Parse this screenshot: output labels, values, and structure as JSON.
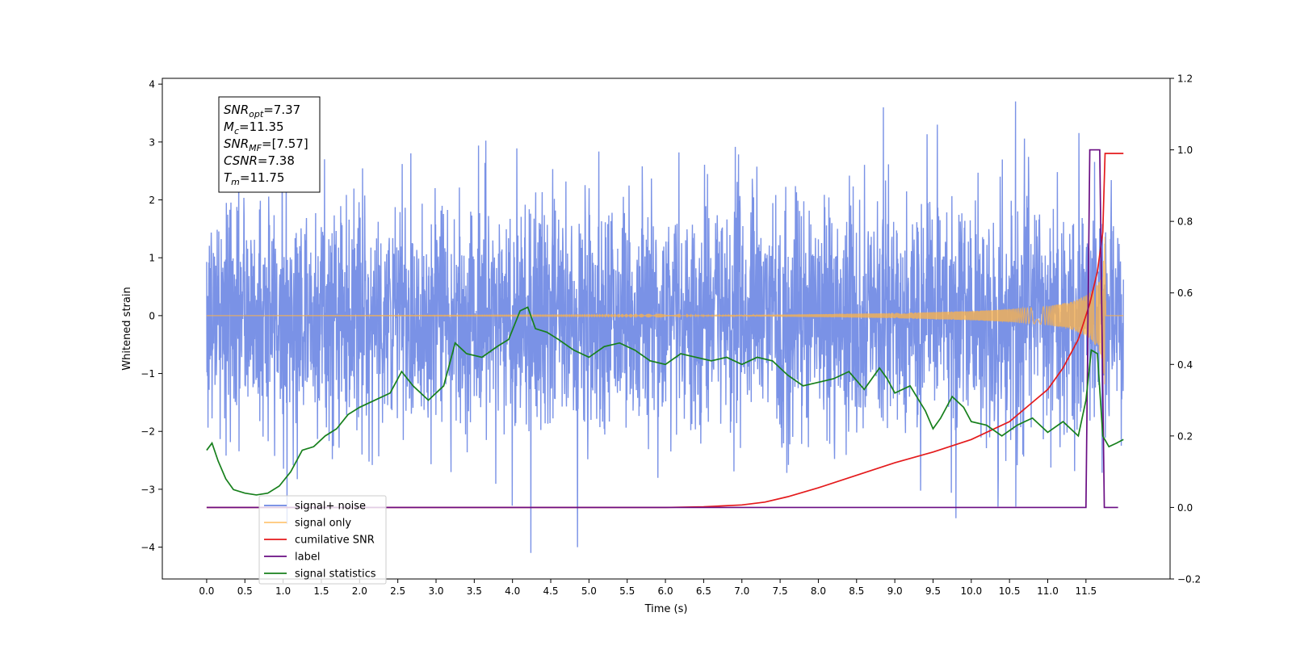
{
  "chart_data": {
    "type": "line",
    "xlabel": "Time (s)",
    "ylabel": "Whitened strain",
    "xlim": [
      -0.58,
      12.6
    ],
    "ylim_left": [
      -4.55,
      4.1
    ],
    "ylim_right": [
      -0.2,
      1.2
    ],
    "x_ticks": [
      0.0,
      0.5,
      1.0,
      1.5,
      2.0,
      2.5,
      3.0,
      3.5,
      4.0,
      4.5,
      5.0,
      5.5,
      6.0,
      6.5,
      7.0,
      7.5,
      8.0,
      8.5,
      9.0,
      9.5,
      10.0,
      10.5,
      11.0,
      11.5
    ],
    "x_tick_labels": [
      "0.0",
      "0.5",
      "1.0",
      "1.5",
      "2.0",
      "2.5",
      "3.0",
      "3.5",
      "4.0",
      "4.5",
      "5.0",
      "5.5",
      "6.0",
      "6.5",
      "7.0",
      "7.5",
      "8.0",
      "8.5",
      "9.0",
      "9.5",
      "10.0",
      "10.5",
      "11.0",
      "11.5"
    ],
    "y_left_ticks": [
      -4,
      -3,
      -2,
      -1,
      0,
      1,
      2,
      3,
      4
    ],
    "y_left_tick_labels": [
      "−4",
      "−3",
      "−2",
      "−1",
      "0",
      "1",
      "2",
      "3",
      "4"
    ],
    "y_right_ticks": [
      -0.2,
      0.0,
      0.2,
      0.4,
      0.6,
      0.8,
      1.0,
      1.2
    ],
    "y_right_tick_labels": [
      "−0.2",
      "0.0",
      "0.2",
      "0.4",
      "0.6",
      "0.8",
      "1.0",
      "1.2"
    ],
    "grid": false,
    "legend_position": "lower-left",
    "annotation": {
      "lines": [
        {
          "sym": "SNR",
          "sub": "opt",
          "val": "=7.37"
        },
        {
          "sym": "M",
          "sub": "c",
          "val": "=11.35"
        },
        {
          "sym": "SNR",
          "sub": "MF",
          "val": "=[7.57]"
        },
        {
          "sym": "CSNR",
          "sub": "",
          "val": "=7.38"
        },
        {
          "sym": "T",
          "sub": "m",
          "val": "=11.75"
        }
      ]
    },
    "series": [
      {
        "name": "signal+ noise",
        "color": "#6b86e3",
        "axis": "left",
        "style": "noise",
        "x_range": [
          0.0,
          11.99
        ],
        "sigma": 1.0,
        "notable_extremes": [
          {
            "x": 4.24,
            "y": -4.1
          },
          {
            "x": 4.85,
            "y": -4.0
          },
          {
            "x": 10.58,
            "y": 3.7
          },
          {
            "x": 8.85,
            "y": 3.6
          },
          {
            "x": 1.05,
            "y": -3.6
          },
          {
            "x": 9.8,
            "y": -3.5
          }
        ]
      },
      {
        "name": "signal only",
        "color": "#ffb347",
        "axis": "left",
        "style": "chirp",
        "x_range": [
          0.0,
          11.99
        ],
        "envelope": {
          "x": [
            0.0,
            6.0,
            7.0,
            8.0,
            9.0,
            10.0,
            10.5,
            11.0,
            11.3,
            11.5,
            11.6,
            11.65,
            11.7,
            11.73,
            11.75,
            11.76,
            11.99
          ],
          "amp": [
            0.0,
            0.005,
            0.012,
            0.025,
            0.045,
            0.08,
            0.11,
            0.16,
            0.24,
            0.35,
            0.46,
            0.55,
            0.7,
            1.0,
            1.4,
            0.0,
            0.0
          ]
        }
      },
      {
        "name": "cumilative SNR",
        "color": "#e41a1c",
        "axis": "right",
        "x": [
          0.0,
          6.0,
          6.5,
          7.0,
          7.3,
          7.6,
          8.0,
          8.5,
          9.0,
          9.5,
          10.0,
          10.5,
          11.0,
          11.2,
          11.4,
          11.55,
          11.65,
          11.72,
          11.75,
          11.99
        ],
        "values": [
          0.0,
          0.0,
          0.002,
          0.007,
          0.015,
          0.03,
          0.055,
          0.09,
          0.125,
          0.155,
          0.19,
          0.24,
          0.33,
          0.39,
          0.47,
          0.57,
          0.66,
          0.77,
          0.99,
          0.99
        ]
      },
      {
        "name": "label",
        "color": "#6a0d83",
        "axis": "right",
        "x": [
          0.0,
          11.5,
          11.55,
          11.68,
          11.74,
          11.92
        ],
        "values": [
          0.0,
          0.0,
          1.0,
          1.0,
          0.0,
          0.0
        ]
      },
      {
        "name": "signal statistics",
        "color": "#17801c",
        "axis": "right",
        "x": [
          0.0,
          0.07,
          0.15,
          0.25,
          0.35,
          0.5,
          0.65,
          0.8,
          0.95,
          1.1,
          1.25,
          1.4,
          1.55,
          1.7,
          1.85,
          2.0,
          2.2,
          2.4,
          2.55,
          2.7,
          2.9,
          3.0,
          3.1,
          3.25,
          3.4,
          3.6,
          3.8,
          3.95,
          4.1,
          4.2,
          4.3,
          4.45,
          4.6,
          4.8,
          5.0,
          5.2,
          5.4,
          5.6,
          5.8,
          6.0,
          6.2,
          6.4,
          6.6,
          6.8,
          7.0,
          7.2,
          7.4,
          7.6,
          7.8,
          8.0,
          8.2,
          8.4,
          8.6,
          8.8,
          8.9,
          9.0,
          9.2,
          9.4,
          9.5,
          9.6,
          9.75,
          9.9,
          10.0,
          10.2,
          10.4,
          10.6,
          10.8,
          11.0,
          11.2,
          11.4,
          11.5,
          11.57,
          11.65,
          11.72,
          11.8,
          11.9,
          11.99
        ],
        "values": [
          0.16,
          0.18,
          0.13,
          0.08,
          0.05,
          0.04,
          0.035,
          0.04,
          0.06,
          0.1,
          0.16,
          0.17,
          0.2,
          0.22,
          0.26,
          0.28,
          0.3,
          0.32,
          0.38,
          0.34,
          0.3,
          0.32,
          0.34,
          0.46,
          0.43,
          0.42,
          0.45,
          0.47,
          0.55,
          0.56,
          0.5,
          0.49,
          0.47,
          0.44,
          0.42,
          0.45,
          0.46,
          0.44,
          0.41,
          0.4,
          0.43,
          0.42,
          0.41,
          0.42,
          0.4,
          0.42,
          0.41,
          0.37,
          0.34,
          0.35,
          0.36,
          0.38,
          0.33,
          0.39,
          0.36,
          0.32,
          0.34,
          0.27,
          0.22,
          0.25,
          0.31,
          0.28,
          0.24,
          0.23,
          0.2,
          0.23,
          0.25,
          0.21,
          0.24,
          0.2,
          0.3,
          0.44,
          0.43,
          0.2,
          0.17,
          0.18,
          0.19
        ]
      }
    ]
  }
}
